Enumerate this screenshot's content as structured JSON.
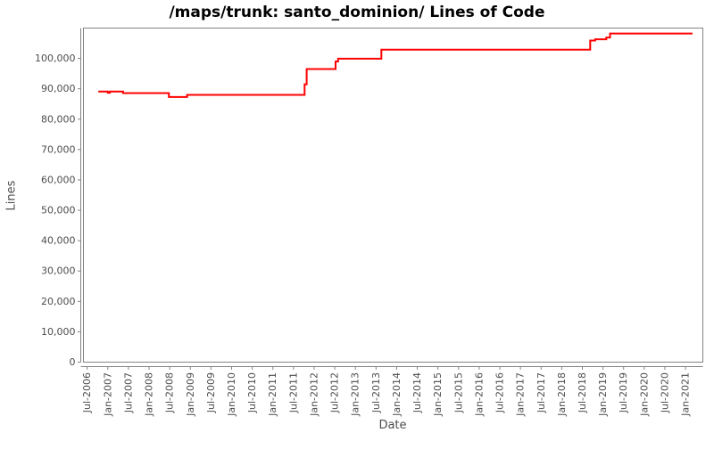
{
  "chart_data": {
    "type": "line",
    "title": "/maps/trunk: santo_dominion/ Lines of Code",
    "xlabel": "Date",
    "ylabel": "Lines",
    "grid": false,
    "legend_position": "none",
    "x_domain_years": [
      2006.41,
      2021.42
    ],
    "ylim": [
      0,
      110000
    ],
    "x_ticks": [
      {
        "value": 2006.5,
        "label": "Jul-2006"
      },
      {
        "value": 2007.0,
        "label": "Jan-2007"
      },
      {
        "value": 2007.5,
        "label": "Jul-2007"
      },
      {
        "value": 2008.0,
        "label": "Jan-2008"
      },
      {
        "value": 2008.5,
        "label": "Jul-2008"
      },
      {
        "value": 2009.0,
        "label": "Jan-2009"
      },
      {
        "value": 2009.5,
        "label": "Jul-2009"
      },
      {
        "value": 2010.0,
        "label": "Jan-2010"
      },
      {
        "value": 2010.5,
        "label": "Jul-2010"
      },
      {
        "value": 2011.0,
        "label": "Jan-2011"
      },
      {
        "value": 2011.5,
        "label": "Jul-2011"
      },
      {
        "value": 2012.0,
        "label": "Jan-2012"
      },
      {
        "value": 2012.5,
        "label": "Jul-2012"
      },
      {
        "value": 2013.0,
        "label": "Jan-2013"
      },
      {
        "value": 2013.5,
        "label": "Jul-2013"
      },
      {
        "value": 2014.0,
        "label": "Jan-2014"
      },
      {
        "value": 2014.5,
        "label": "Jul-2014"
      },
      {
        "value": 2015.0,
        "label": "Jan-2015"
      },
      {
        "value": 2015.5,
        "label": "Jul-2015"
      },
      {
        "value": 2016.0,
        "label": "Jan-2016"
      },
      {
        "value": 2016.5,
        "label": "Jul-2016"
      },
      {
        "value": 2017.0,
        "label": "Jan-2017"
      },
      {
        "value": 2017.5,
        "label": "Jul-2017"
      },
      {
        "value": 2018.0,
        "label": "Jan-2018"
      },
      {
        "value": 2018.5,
        "label": "Jul-2018"
      },
      {
        "value": 2019.0,
        "label": "Jan-2019"
      },
      {
        "value": 2019.5,
        "label": "Jul-2019"
      },
      {
        "value": 2020.0,
        "label": "Jan-2020"
      },
      {
        "value": 2020.5,
        "label": "Jul-2020"
      },
      {
        "value": 2021.0,
        "label": "Jan-2021"
      }
    ],
    "y_ticks": [
      {
        "value": 0,
        "label": "0"
      },
      {
        "value": 10000,
        "label": "10,000"
      },
      {
        "value": 20000,
        "label": "20,000"
      },
      {
        "value": 30000,
        "label": "30,000"
      },
      {
        "value": 40000,
        "label": "40,000"
      },
      {
        "value": 50000,
        "label": "50,000"
      },
      {
        "value": 60000,
        "label": "60,000"
      },
      {
        "value": 70000,
        "label": "70,000"
      },
      {
        "value": 80000,
        "label": "80,000"
      },
      {
        "value": 90000,
        "label": "90,000"
      },
      {
        "value": 100000,
        "label": "100,000"
      }
    ],
    "series": [
      {
        "name": "Lines of Code",
        "color": "#ff0000",
        "points": [
          [
            2006.77,
            89100
          ],
          [
            2007.0,
            89100
          ],
          [
            2007.0,
            88700
          ],
          [
            2007.05,
            88700
          ],
          [
            2007.05,
            89100
          ],
          [
            2007.37,
            89100
          ],
          [
            2007.37,
            88600
          ],
          [
            2008.48,
            88600
          ],
          [
            2008.48,
            87300
          ],
          [
            2008.92,
            87300
          ],
          [
            2008.92,
            88000
          ],
          [
            2011.77,
            88000
          ],
          [
            2011.77,
            91500
          ],
          [
            2011.82,
            91500
          ],
          [
            2011.82,
            96500
          ],
          [
            2012.52,
            96500
          ],
          [
            2012.52,
            99000
          ],
          [
            2012.58,
            99000
          ],
          [
            2012.58,
            99900
          ],
          [
            2013.63,
            99900
          ],
          [
            2013.63,
            102900
          ],
          [
            2018.69,
            102900
          ],
          [
            2018.69,
            105900
          ],
          [
            2018.81,
            105900
          ],
          [
            2018.81,
            106300
          ],
          [
            2019.08,
            106300
          ],
          [
            2019.08,
            106900
          ],
          [
            2019.17,
            106900
          ],
          [
            2019.17,
            108200
          ],
          [
            2021.17,
            108200
          ]
        ]
      }
    ],
    "colors": {
      "plot_border": "#848484",
      "axis_line": "#848484",
      "tick_label": "#4d4d4d",
      "axis_title": "#4d4d4d",
      "title": "#000000",
      "background": "#ffffff"
    }
  }
}
